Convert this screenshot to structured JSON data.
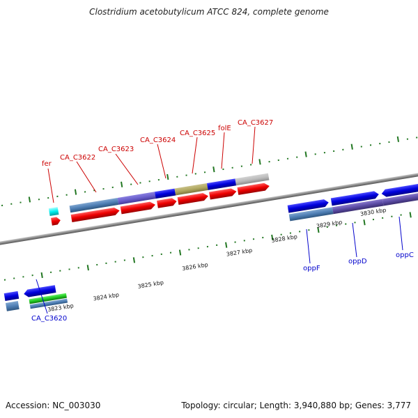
{
  "title": "Clostridium acetobutylicum ATCC 824, complete genome",
  "footer": {
    "accession": "Accession: NC_003030",
    "topology": "Topology: circular; Length: 3,940,880 bp; Genes: 3,777"
  },
  "scale_labels": [
    "3823 kbp",
    "3824 kbp",
    "3825 kbp",
    "3826 kbp",
    "3827 kbp",
    "3828 kbp",
    "3829 kbp",
    "3830 kbp"
  ],
  "upper_gene_labels": [
    "fer",
    "CA_C3622",
    "CA_C3623",
    "CA_C3624",
    "CA_C3625",
    "folE",
    "CA_C3627"
  ],
  "lower_gene_labels": [
    "CA_C3620",
    "oppF",
    "oppD",
    "oppC"
  ],
  "colors": {
    "forward_gene": "#0000ee",
    "reverse_gene": "#ee0000",
    "upper_label": "#cc0000",
    "lower_label": "#0000cc",
    "tick": "#227722",
    "backbone": "#888888"
  }
}
